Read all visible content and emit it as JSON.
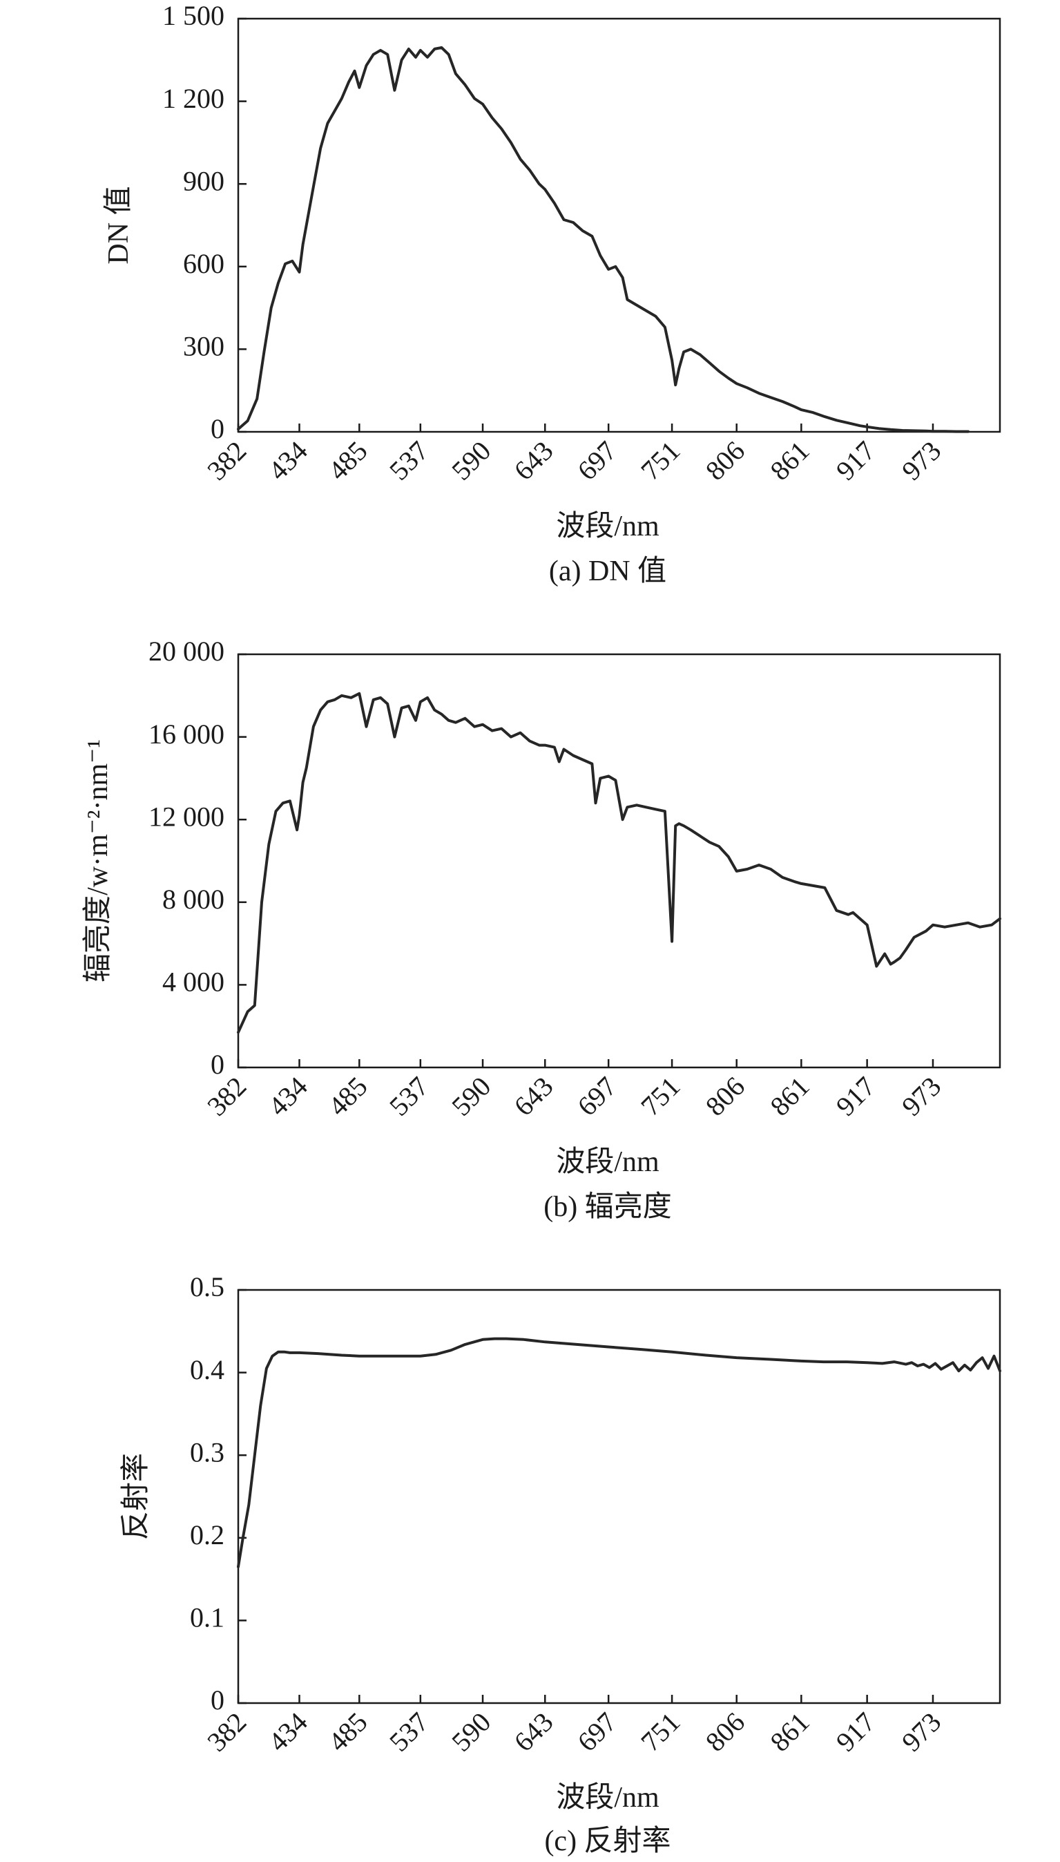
{
  "chart_data": [
    {
      "type": "line",
      "caption": "(a) DN 值",
      "xlabel": "波段/nm",
      "ylabel": "DN 值",
      "x_tick_labels": [
        "382",
        "434",
        "485",
        "537",
        "590",
        "643",
        "697",
        "751",
        "806",
        "861",
        "917",
        "973"
      ],
      "y_tick_labels": [
        "0",
        "300",
        "600",
        "900",
        "1 200",
        "1 500"
      ],
      "xlim": [
        382,
        1030
      ],
      "ylim": [
        0,
        1500
      ],
      "grid": false,
      "series": [
        {
          "x": [
            382,
            390,
            398,
            404,
            410,
            416,
            422,
            428,
            434,
            437,
            440,
            446,
            452,
            458,
            464,
            470,
            476,
            481,
            485,
            491,
            497,
            503,
            509,
            515,
            521,
            527,
            533,
            537,
            543,
            549,
            555,
            561,
            567,
            575,
            583,
            590,
            598,
            606,
            614,
            622,
            630,
            638,
            643,
            651,
            659,
            667,
            675,
            683,
            690,
            697,
            703,
            709,
            713,
            721,
            729,
            737,
            745,
            751,
            754,
            757,
            761,
            767,
            775,
            783,
            791,
            799,
            806,
            815,
            825,
            835,
            845,
            855,
            861,
            871,
            881,
            891,
            901,
            911,
            917,
            927,
            937,
            947,
            957,
            967,
            973,
            983,
            993,
            1003
          ],
          "y": [
            10,
            40,
            120,
            290,
            450,
            540,
            610,
            620,
            580,
            680,
            750,
            890,
            1030,
            1120,
            1165,
            1210,
            1270,
            1310,
            1250,
            1330,
            1370,
            1385,
            1370,
            1240,
            1350,
            1390,
            1360,
            1385,
            1360,
            1390,
            1395,
            1370,
            1300,
            1260,
            1210,
            1190,
            1140,
            1100,
            1050,
            990,
            950,
            900,
            880,
            830,
            770,
            760,
            730,
            710,
            640,
            590,
            600,
            560,
            480,
            460,
            440,
            420,
            380,
            260,
            170,
            230,
            290,
            300,
            280,
            250,
            220,
            195,
            175,
            160,
            140,
            125,
            110,
            92,
            80,
            70,
            55,
            42,
            32,
            22,
            18,
            12,
            8,
            5,
            4,
            3,
            2,
            2,
            1,
            1
          ]
        }
      ]
    },
    {
      "type": "line",
      "caption": "(b) 辐亮度",
      "xlabel": "波段/nm",
      "ylabel": "辐亮度/w·m⁻²·nm⁻¹",
      "x_tick_labels": [
        "382",
        "434",
        "485",
        "537",
        "590",
        "643",
        "697",
        "751",
        "806",
        "861",
        "917",
        "973"
      ],
      "y_tick_labels": [
        "0",
        "4 000",
        "8 000",
        "12 000",
        "16 000",
        "20 000"
      ],
      "xlim": [
        382,
        1030
      ],
      "ylim": [
        0,
        20000
      ],
      "grid": false,
      "series": [
        {
          "x": [
            382,
            390,
            396,
            402,
            408,
            414,
            420,
            426,
            432,
            434,
            437,
            440,
            446,
            452,
            458,
            464,
            470,
            478,
            485,
            491,
            497,
            503,
            509,
            515,
            521,
            527,
            533,
            537,
            543,
            549,
            555,
            561,
            567,
            575,
            583,
            590,
            598,
            606,
            614,
            622,
            630,
            638,
            643,
            651,
            655,
            659,
            667,
            675,
            683,
            686,
            690,
            697,
            703,
            709,
            713,
            721,
            729,
            737,
            745,
            751,
            754,
            757,
            761,
            767,
            775,
            783,
            791,
            799,
            806,
            815,
            825,
            835,
            845,
            855,
            861,
            871,
            881,
            891,
            901,
            905,
            911,
            917,
            925,
            932,
            937,
            940,
            945,
            950,
            957,
            967,
            973,
            983,
            993,
            1003,
            1013,
            1023,
            1030
          ],
          "y": [
            1700,
            2700,
            3000,
            8000,
            10800,
            12400,
            12800,
            12900,
            11500,
            12200,
            13800,
            14500,
            16500,
            17300,
            17700,
            17800,
            18000,
            17900,
            18100,
            16500,
            17800,
            17900,
            17600,
            16000,
            17400,
            17500,
            16800,
            17700,
            17900,
            17300,
            17100,
            16800,
            16700,
            16900,
            16500,
            16600,
            16300,
            16400,
            16000,
            16200,
            15800,
            15600,
            15600,
            15500,
            14800,
            15400,
            15100,
            14900,
            14700,
            12800,
            14000,
            14100,
            13900,
            12000,
            12600,
            12700,
            12600,
            12500,
            12400,
            6100,
            11700,
            11800,
            11700,
            11500,
            11200,
            10900,
            10700,
            10200,
            9500,
            9600,
            9800,
            9600,
            9200,
            9000,
            8900,
            8800,
            8700,
            7600,
            7400,
            7500,
            7200,
            6900,
            4900,
            5500,
            5000,
            5100,
            5300,
            5700,
            6300,
            6600,
            6900,
            6800,
            6900,
            7000,
            6800,
            6900,
            7200
          ]
        }
      ]
    },
    {
      "type": "line",
      "caption": "(c) 反射率",
      "xlabel": "波段/nm",
      "ylabel": "反射率",
      "x_tick_labels": [
        "382",
        "434",
        "485",
        "537",
        "590",
        "643",
        "697",
        "751",
        "806",
        "861",
        "917",
        "973"
      ],
      "y_tick_labels": [
        "0",
        "0.1",
        "0.2",
        "0.3",
        "0.4",
        "0.5"
      ],
      "xlim": [
        382,
        1030
      ],
      "ylim": [
        0,
        0.5
      ],
      "grid": false,
      "series": [
        {
          "x": [
            382,
            386,
            391,
            396,
            401,
            406,
            411,
            416,
            421,
            426,
            434,
            450,
            470,
            485,
            500,
            520,
            537,
            550,
            563,
            575,
            590,
            600,
            610,
            625,
            643,
            670,
            697,
            725,
            751,
            780,
            806,
            835,
            861,
            880,
            900,
            917,
            930,
            940,
            950,
            955,
            960,
            965,
            970,
            975,
            980,
            985,
            990,
            995,
            1000,
            1005,
            1010,
            1015,
            1020,
            1025,
            1030
          ],
          "y": [
            0.165,
            0.2,
            0.24,
            0.3,
            0.36,
            0.405,
            0.42,
            0.425,
            0.425,
            0.424,
            0.424,
            0.423,
            0.421,
            0.42,
            0.42,
            0.42,
            0.42,
            0.422,
            0.427,
            0.434,
            0.44,
            0.441,
            0.441,
            0.44,
            0.437,
            0.434,
            0.431,
            0.428,
            0.425,
            0.421,
            0.418,
            0.416,
            0.414,
            0.413,
            0.413,
            0.412,
            0.411,
            0.413,
            0.41,
            0.412,
            0.408,
            0.41,
            0.406,
            0.411,
            0.404,
            0.408,
            0.412,
            0.402,
            0.409,
            0.403,
            0.412,
            0.418,
            0.405,
            0.42,
            0.402
          ]
        }
      ]
    }
  ]
}
